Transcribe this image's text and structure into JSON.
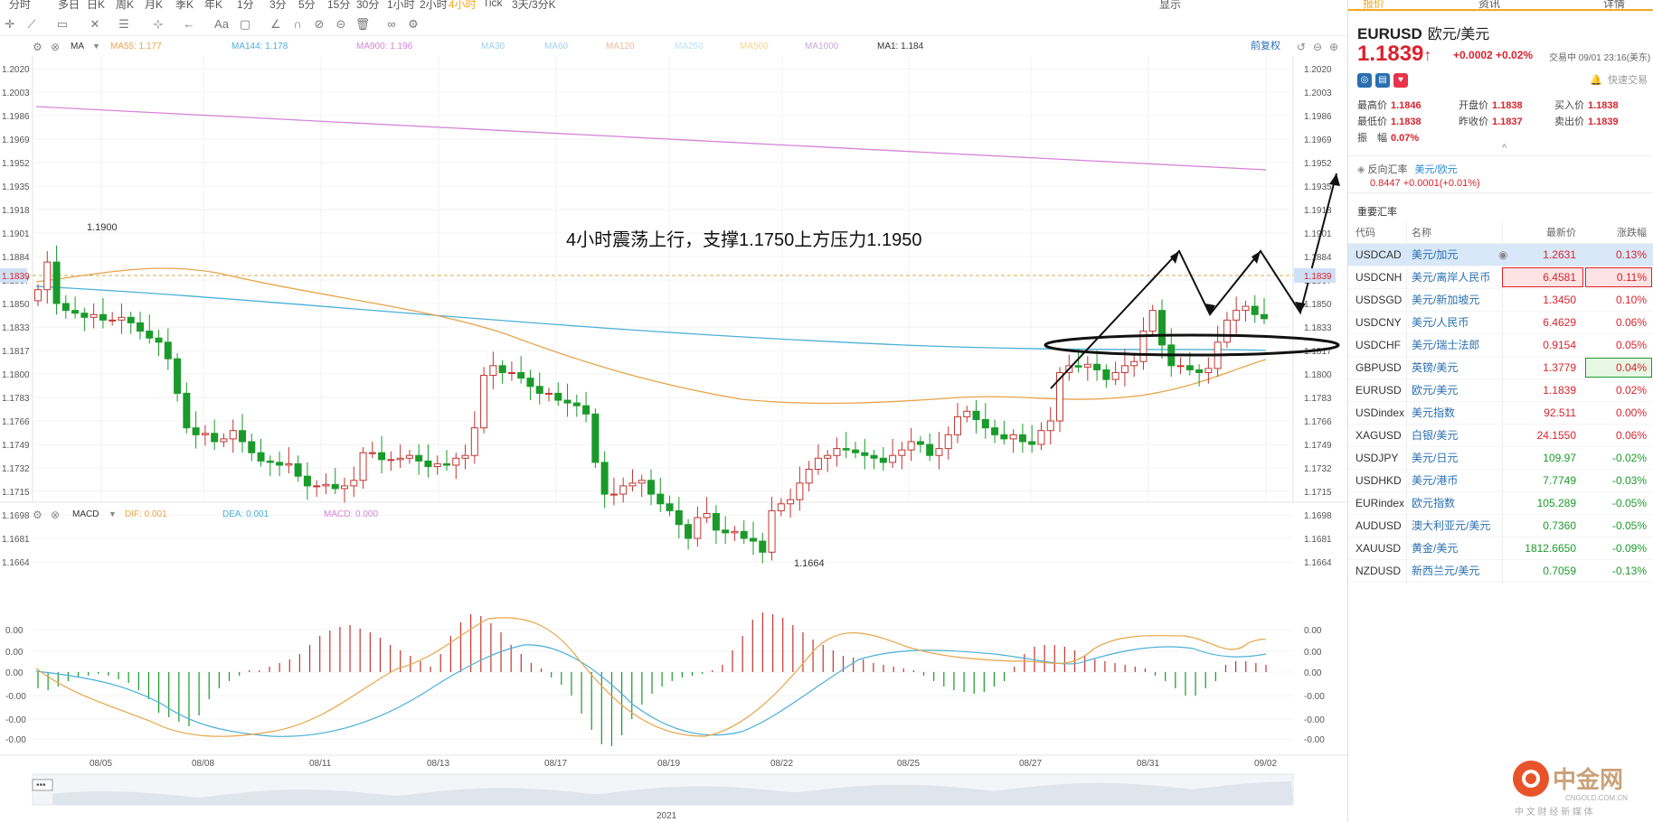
{
  "topbar": {
    "symbol": "EURUSD",
    "periods": [
      "分时",
      "多日",
      "日K",
      "周K",
      "月K",
      "季K",
      "年K",
      "1分",
      "3分",
      "5分",
      "15分",
      "30分",
      "1小时",
      "2小时",
      "4小时",
      "Tick",
      "3天/3分K"
    ],
    "active": "4小时",
    "right": [
      "显示"
    ]
  },
  "chart": {
    "ma_label": "MA",
    "ma55": "MA55: 1.177",
    "ma144": "MA144: 1.178",
    "ma900": "MA900: 1.196",
    "ma30": "MA30",
    "ma60": "MA60",
    "ma120": "MA120",
    "ma250": "MA250",
    "ma500": "MA500",
    "ma1000": "MA1000",
    "ma1": "MA1: 1.184",
    "adjust": "前复权",
    "yticks": [
      "1.2020",
      "1.2003",
      "1.1986",
      "1.1969",
      "1.1952",
      "1.1935",
      "1.1918",
      "1.1901",
      "1.1884",
      "1.1867",
      "1.1850",
      "1.1833",
      "1.1817",
      "1.1800",
      "1.1783",
      "1.1766",
      "1.1749",
      "1.1732",
      "1.1715",
      "1.1698",
      "1.1681",
      "1.1664"
    ],
    "price_tag": "1.1839",
    "hi_label": "1.1900",
    "lo_label": "1.1664",
    "annotation": "4小时震荡上行，支撑1.1750上方压力1.1950",
    "xticks": [
      "08/05",
      "08/08",
      "08/11",
      "08/13",
      "08/17",
      "08/19",
      "08/22",
      "08/25",
      "08/27",
      "08/31",
      "09/02"
    ],
    "year": "2021"
  },
  "macd": {
    "label": "MACD",
    "dif": "DIF: 0.001",
    "dea": "DEA: 0.001",
    "macd": "MACD: 0.000",
    "yticks": [
      "0.00",
      "0.00",
      "0.00",
      "-0.00",
      "-0.00",
      "-0.00"
    ]
  },
  "panel": {
    "tabs": [
      "报价",
      "资讯",
      "详情"
    ],
    "symbol": "EURUSD",
    "name": "欧元/美元",
    "price": "1.1839",
    "arrow": "↑",
    "change": "+0.0002  +0.02%",
    "trade_time": "交易中 09/01 23:16(美东)",
    "quick": "快速交易",
    "stats": [
      [
        [
          "最高价",
          "1.1846"
        ],
        [
          "开盘价",
          "1.1838"
        ],
        [
          "买入价",
          "1.1838"
        ]
      ],
      [
        [
          "最低价",
          "1.1838"
        ],
        [
          "昨收价",
          "1.1837"
        ],
        [
          "卖出价",
          "1.1839"
        ]
      ],
      [
        [
          "振　幅",
          "0.07%"
        ]
      ]
    ],
    "reverse_label": "反向汇率",
    "reverse_pair": "美元/欧元",
    "reverse_value": "0.8447  +0.0001(+0.01%)",
    "important": "重要汇率",
    "headers": [
      "代码",
      "名称",
      "最新价",
      "涨跌幅"
    ],
    "rows": [
      {
        "code": "USDCAD",
        "name": "美元/加元",
        "price": "1.2631",
        "pct": "0.13%",
        "dir": "up",
        "sel": true
      },
      {
        "code": "USDCNH",
        "name": "美元/离岸人民币",
        "price": "6.4581",
        "pct": "0.11%",
        "dir": "up",
        "hl": "red"
      },
      {
        "code": "USDSGD",
        "name": "美元/新加坡元",
        "price": "1.3450",
        "pct": "0.10%",
        "dir": "up"
      },
      {
        "code": "USDCNY",
        "name": "美元/人民币",
        "price": "6.4629",
        "pct": "0.06%",
        "dir": "up"
      },
      {
        "code": "USDCHF",
        "name": "美元/瑞士法郎",
        "price": "0.9154",
        "pct": "0.05%",
        "dir": "up"
      },
      {
        "code": "GBPUSD",
        "name": "英镑/美元",
        "price": "1.3779",
        "pct": "0.04%",
        "dir": "up",
        "hl": "green"
      },
      {
        "code": "EURUSD",
        "name": "欧元/美元",
        "price": "1.1839",
        "pct": "0.02%",
        "dir": "up"
      },
      {
        "code": "USDindex",
        "name": "美元指数",
        "price": "92.511",
        "pct": "0.00%",
        "dir": "up"
      },
      {
        "code": "XAGUSD",
        "name": "白银/美元",
        "price": "24.1550",
        "pct": "0.06%",
        "dir": "up"
      },
      {
        "code": "USDJPY",
        "name": "美元/日元",
        "price": "109.97",
        "pct": "-0.02%",
        "dir": "dn"
      },
      {
        "code": "USDHKD",
        "name": "美元/港币",
        "price": "7.7749",
        "pct": "-0.03%",
        "dir": "dn"
      },
      {
        "code": "EURindex",
        "name": "欧元指数",
        "price": "105.289",
        "pct": "-0.05%",
        "dir": "dn"
      },
      {
        "code": "AUDUSD",
        "name": "澳大利亚元/美元",
        "price": "0.7360",
        "pct": "-0.05%",
        "dir": "dn"
      },
      {
        "code": "XAUUSD",
        "name": "黄金/美元",
        "price": "1812.6650",
        "pct": "-0.09%",
        "dir": "dn"
      },
      {
        "code": "NZDUSD",
        "name": "新西兰元/美元",
        "price": "0.7059",
        "pct": "-0.13%",
        "dir": "dn"
      }
    ]
  },
  "logo": {
    "cn": "中金网",
    "en": "CNGOLD.COM.CN",
    "slogan": "中 文 财 经 新 媒 体"
  },
  "colors": {
    "up": "#c23531",
    "down": "#1a9a2a",
    "ma55": "#e8a44a",
    "ma144": "#4ab0d8",
    "ma900": "#d783d8",
    "accent": "#f5a623"
  }
}
